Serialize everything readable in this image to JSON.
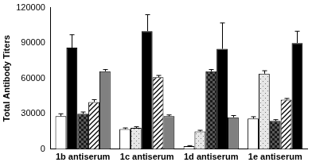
{
  "chart_data": {
    "type": "bar",
    "categories": [
      "1b antiserum",
      "1c antiserum",
      "1d antiserum",
      "1e antiserum"
    ],
    "series": [
      {
        "colors": [
          "#ffffff",
          "#ffffff",
          "#ffffff",
          "#ffffff"
        ],
        "values": [
          28000,
          17000,
          2500,
          26000
        ],
        "errors": [
          2000,
          1000,
          500,
          1500
        ]
      },
      {
        "colors": [
          "#000000",
          "#e6e6e6",
          "#e6e6e6",
          "#e6e6e6"
        ],
        "values": [
          86000,
          18000,
          15000,
          64000
        ],
        "errors": [
          11000,
          1000,
          1000,
          2500
        ]
      },
      {
        "colors": [
          "#595959",
          "#000000",
          "#595959",
          "#595959"
        ],
        "values": [
          30000,
          100000,
          66000,
          24000
        ],
        "errors": [
          1500,
          14000,
          1500,
          1000
        ]
      },
      {
        "colors": [
          "#bfbfbf",
          "#bfbfbf",
          "#000000",
          "#bfbfbf"
        ],
        "values": [
          40000,
          61000,
          85000,
          42000
        ],
        "errors": [
          2000,
          1500,
          22000,
          1000
        ]
      },
      {
        "colors": [
          "#808080",
          "#808080",
          "#808080",
          "#000000"
        ],
        "values": [
          66000,
          28000,
          27000,
          90000
        ],
        "errors": [
          1500,
          1000,
          1500,
          10000
        ]
      }
    ],
    "ylabel": "Total Antibody Titers",
    "ylim": [
      0,
      120000
    ],
    "yticks": [
      0,
      30000,
      60000,
      90000,
      120000
    ],
    "grid": false
  }
}
